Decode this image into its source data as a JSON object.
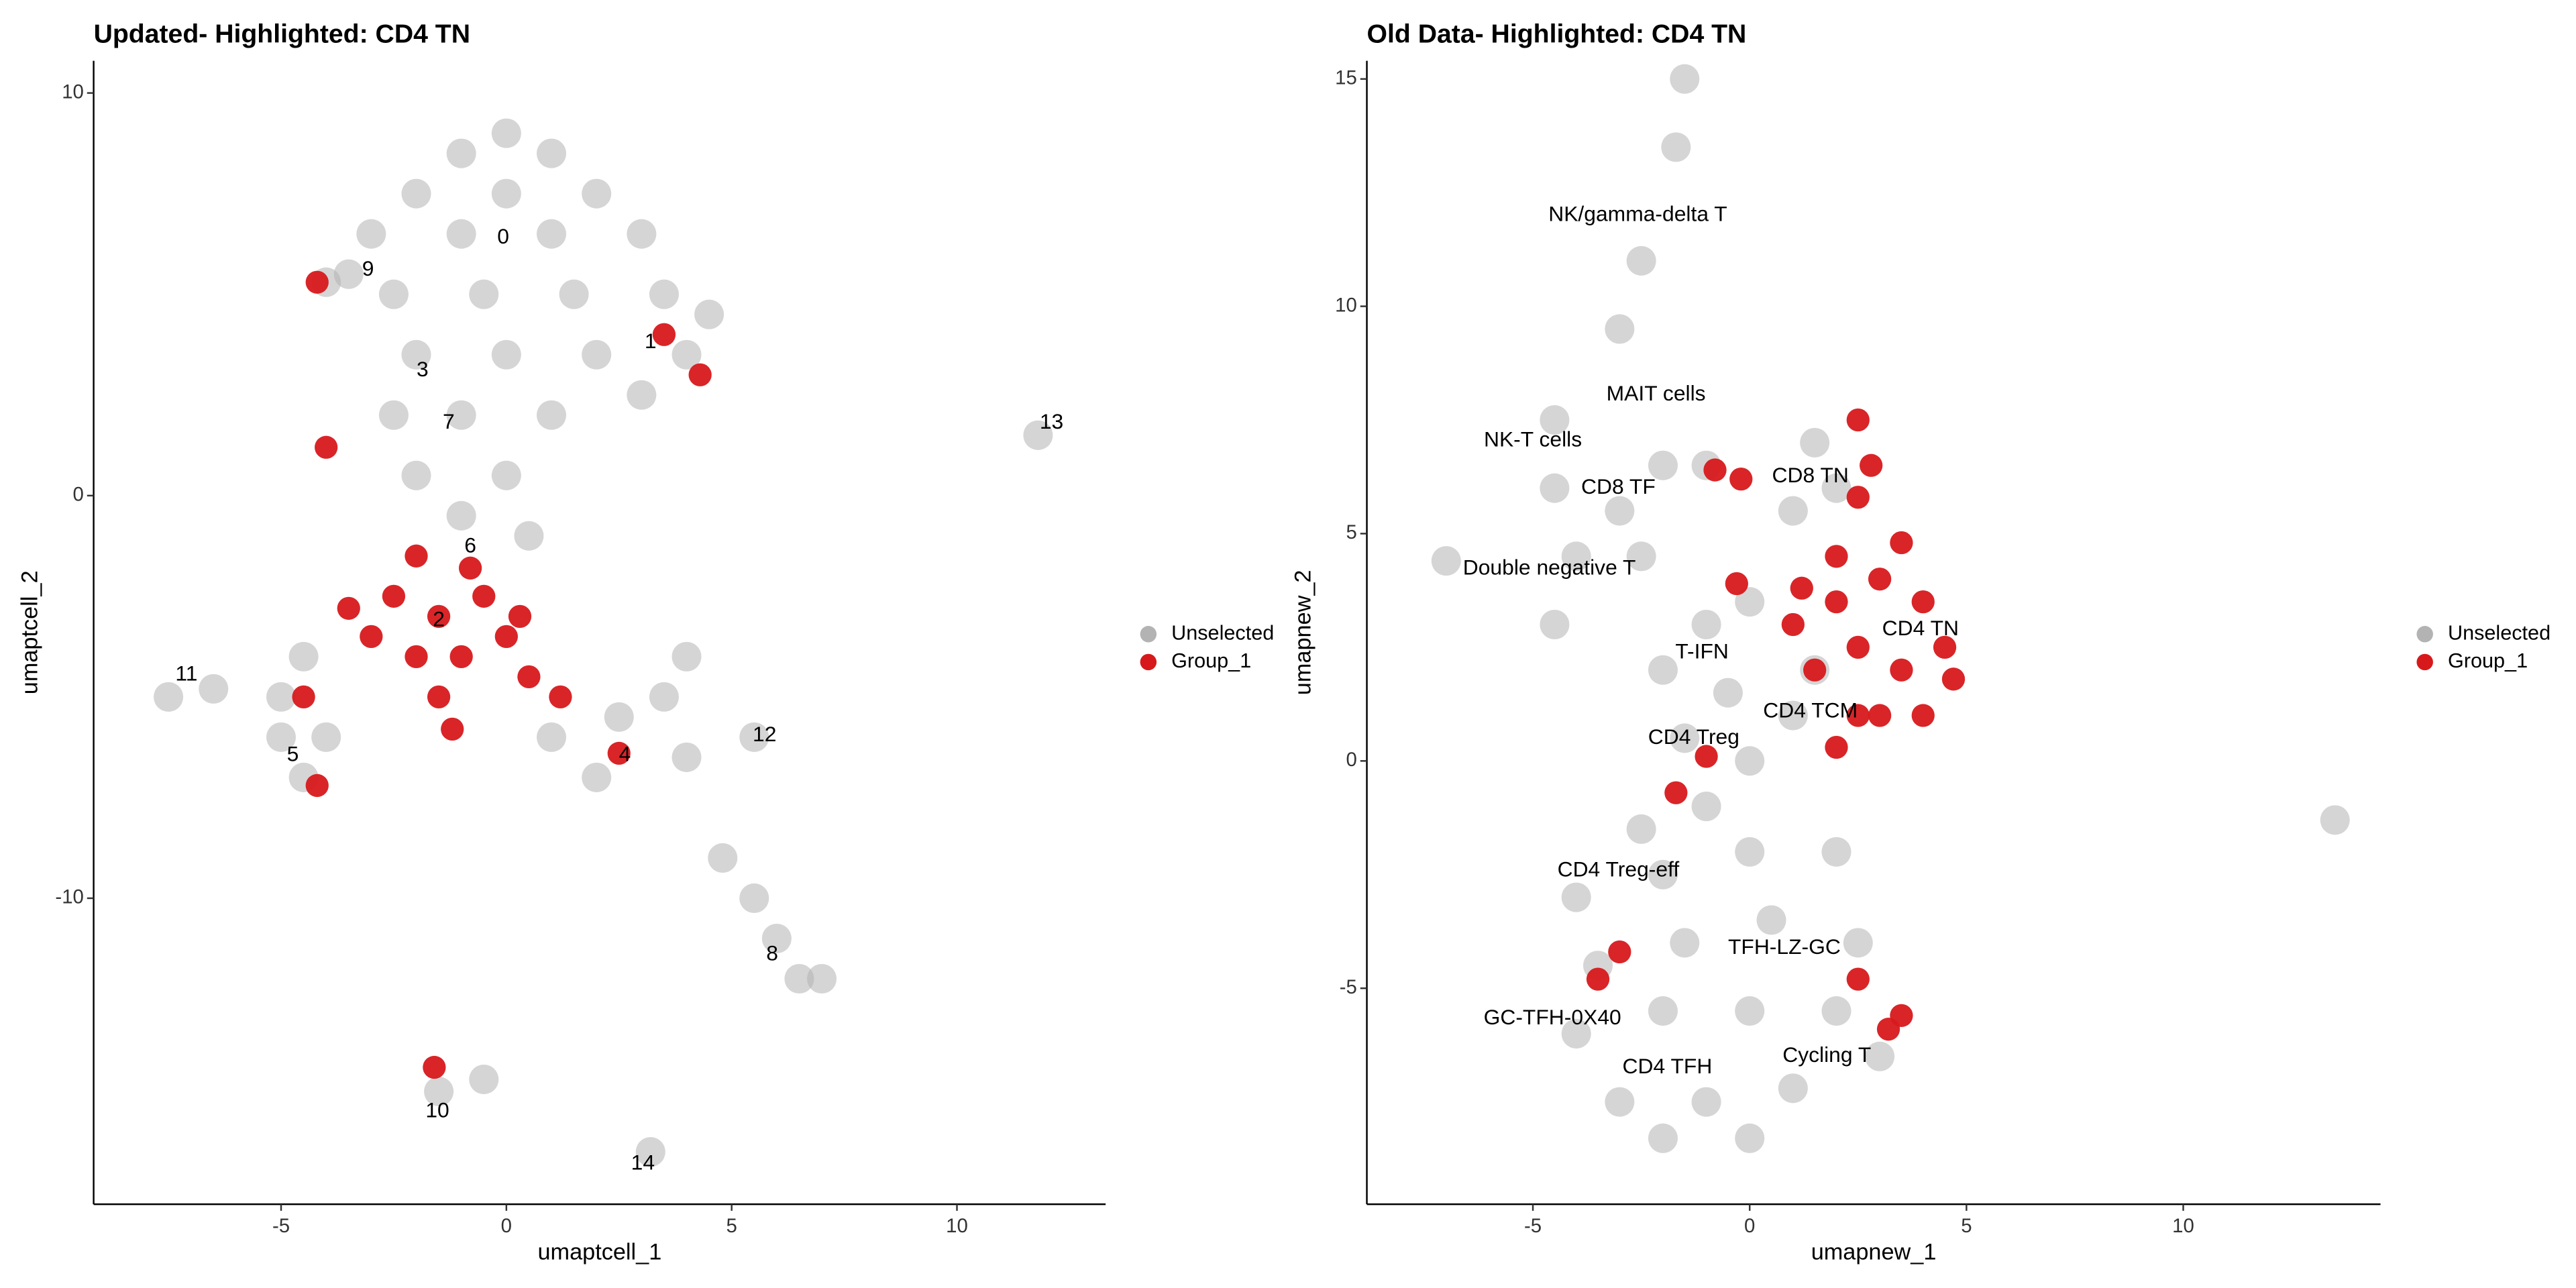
{
  "chart_data": [
    {
      "type": "scatter",
      "title": "Updated- Highlighted: CD4 TN",
      "x_label": "umaptcell_1",
      "y_label": "umaptcell_2",
      "xlim": [
        -9.16,
        13.3
      ],
      "ylim": [
        -17.6,
        10.8
      ],
      "xticks": [
        -5,
        0,
        5,
        10
      ],
      "yticks": [
        -10,
        0,
        10
      ],
      "legend": "right",
      "grid": false,
      "series": [
        {
          "name": "Unselected",
          "color": "#b3b3b3",
          "x": [
            0,
            -1,
            1,
            -2,
            0,
            2,
            -3,
            -1,
            1,
            3,
            -2.5,
            -0.5,
            1.5,
            3.5,
            4.5,
            -2,
            0,
            2,
            4,
            -2.5,
            -1,
            1,
            3,
            -2,
            0,
            -1,
            0.5,
            -3.5,
            -4,
            -4.5,
            -5,
            -4,
            -4.5,
            -5,
            -7.5,
            -6.5,
            1,
            2.5,
            3.5,
            4,
            2,
            4,
            5.5,
            4.8,
            5.5,
            6,
            6.5,
            7,
            -1.5,
            -0.5,
            11.8,
            3.2
          ],
          "y": [
            9,
            8.5,
            8.5,
            7.5,
            7.5,
            7.5,
            6.5,
            6.5,
            6.5,
            6.5,
            5,
            5,
            5,
            5,
            4.5,
            3.5,
            3.5,
            3.5,
            3.5,
            2,
            2,
            2,
            2.5,
            0.5,
            0.5,
            -0.5,
            -1,
            5.5,
            5.3,
            -4,
            -5,
            -6,
            -7,
            -6,
            -5,
            -4.8,
            -6,
            -5.5,
            -5,
            -6.5,
            -7,
            -4,
            -6,
            -9,
            -10,
            -11,
            -12,
            -12,
            -14.8,
            -14.5,
            1.5,
            -16.3
          ]
        },
        {
          "name": "Group_1",
          "color": "#d7191c",
          "x": [
            -1.5,
            -2.5,
            -0.5,
            -3,
            -2,
            -1,
            0,
            -1.5,
            -3.5,
            -2,
            -0.8,
            -1.2,
            0.3,
            -4.2,
            3.5,
            4.3,
            -4,
            -4.5,
            -4.2,
            1.2,
            0.5,
            2.5,
            -1.6
          ],
          "y": [
            -3,
            -2.5,
            -2.5,
            -3.5,
            -4,
            -4,
            -3.5,
            -5,
            -2.8,
            -1.5,
            -1.8,
            -5.8,
            -3,
            5.3,
            4,
            3,
            1.2,
            -5,
            -7.2,
            -5,
            -4.5,
            -6.4,
            -14.2
          ]
        }
      ],
      "annotations": [
        {
          "text": "0",
          "x": -0.07,
          "y": 6.4
        },
        {
          "text": "9",
          "x": -3.07,
          "y": 5.6
        },
        {
          "text": "1",
          "x": 3.2,
          "y": 3.8
        },
        {
          "text": "3",
          "x": -1.86,
          "y": 3.1
        },
        {
          "text": "7",
          "x": -1.28,
          "y": 1.8
        },
        {
          "text": "6",
          "x": -0.8,
          "y": -1.27
        },
        {
          "text": "2",
          "x": -1.5,
          "y": -3.1
        },
        {
          "text": "11",
          "x": -7.1,
          "y": -4.45
        },
        {
          "text": "5",
          "x": -4.74,
          "y": -6.45
        },
        {
          "text": "4",
          "x": 2.63,
          "y": -6.45
        },
        {
          "text": "12",
          "x": 5.73,
          "y": -5.96
        },
        {
          "text": "13",
          "x": 12.1,
          "y": 1.8
        },
        {
          "text": "8",
          "x": 5.9,
          "y": -11.4
        },
        {
          "text": "10",
          "x": -1.53,
          "y": -15.3
        },
        {
          "text": "14",
          "x": 3.03,
          "y": -16.6
        }
      ]
    },
    {
      "type": "scatter",
      "title": "Old Data- Highlighted: CD4 TN",
      "x_label": "umapnew_1",
      "y_label": "umapnew_2",
      "xlim": [
        -8.83,
        14.55
      ],
      "ylim": [
        -9.75,
        15.4
      ],
      "xticks": [
        -5,
        0,
        5,
        10
      ],
      "yticks": [
        -5,
        0,
        5,
        10,
        15
      ],
      "legend": "right",
      "grid": false,
      "series": [
        {
          "name": "Unselected",
          "color": "#b3b3b3",
          "x": [
            -1.5,
            -1.7,
            -2.5,
            -3,
            -4.5,
            -4.5,
            -3,
            -2,
            -1,
            -4,
            -2.5,
            -4.5,
            1.5,
            2,
            1,
            -7,
            -1,
            0,
            -2,
            -0.5,
            1,
            1.5,
            -1.5,
            0,
            -1,
            -2.5,
            -4,
            -2,
            0,
            2,
            -3.5,
            -1.5,
            0.5,
            2.5,
            -4,
            -2,
            0,
            2,
            -3,
            -1,
            1,
            3,
            -2,
            0,
            13.5
          ],
          "y": [
            15,
            13.5,
            11,
            9.5,
            7.5,
            6,
            5.5,
            6.5,
            6.5,
            4.5,
            4.5,
            3,
            7,
            6,
            5.5,
            4.4,
            3,
            3.5,
            2,
            1.5,
            1,
            2,
            0.5,
            0,
            -1,
            -1.5,
            -3,
            -2.5,
            -2,
            -2,
            -4.5,
            -4,
            -3.5,
            -4,
            -6,
            -5.5,
            -5.5,
            -5.5,
            -7.5,
            -7.5,
            -7.2,
            -6.5,
            -8.3,
            -8.3,
            -1.3
          ]
        },
        {
          "name": "Group_1",
          "color": "#d7191c",
          "x": [
            1,
            2,
            3,
            4,
            4.5,
            3.5,
            2.5,
            1.5,
            3,
            4,
            2,
            3.5,
            2.5,
            4.7,
            1.2,
            2.5,
            2.8,
            -0.8,
            -0.2,
            2.5,
            -0.3,
            2,
            -1,
            -1.7,
            -3,
            -3.5,
            2.5,
            3.5,
            3.2
          ],
          "y": [
            3,
            3.5,
            4,
            3.5,
            2.5,
            2,
            2.5,
            2,
            1,
            1,
            4.5,
            4.8,
            1,
            1.8,
            3.8,
            7.5,
            6.5,
            6.4,
            6.2,
            5.8,
            3.9,
            0.3,
            0.1,
            -0.7,
            -4.2,
            -4.8,
            -4.8,
            -5.6,
            -5.9
          ]
        }
      ],
      "annotations": [
        {
          "text": "NK/gamma-delta T",
          "x": -2.58,
          "y": 12.0
        },
        {
          "text": "MAIT cells",
          "x": -2.16,
          "y": 8.05
        },
        {
          "text": "NK-T cells",
          "x": -5.0,
          "y": 7.04
        },
        {
          "text": "CD8 TF",
          "x": -3.03,
          "y": 6.0
        },
        {
          "text": "CD8 TN",
          "x": 1.4,
          "y": 6.25
        },
        {
          "text": "Double negative T",
          "x": -4.62,
          "y": 4.22
        },
        {
          "text": "CD4 TN",
          "x": 3.94,
          "y": 2.89
        },
        {
          "text": "T-IFN",
          "x": -1.1,
          "y": 2.38
        },
        {
          "text": "CD4 TCM",
          "x": 1.4,
          "y": 1.08
        },
        {
          "text": "CD4 Treg",
          "x": -1.29,
          "y": 0.5
        },
        {
          "text": "CD4 Treg-eff",
          "x": -3.03,
          "y": -2.42
        },
        {
          "text": "TFH-LZ-GC",
          "x": 0.8,
          "y": -4.12
        },
        {
          "text": "GC-TFH-0X40",
          "x": -4.55,
          "y": -5.67
        },
        {
          "text": "Cycling T",
          "x": 1.78,
          "y": -6.5
        },
        {
          "text": "CD4 TFH",
          "x": -1.9,
          "y": -6.75
        }
      ]
    }
  ]
}
